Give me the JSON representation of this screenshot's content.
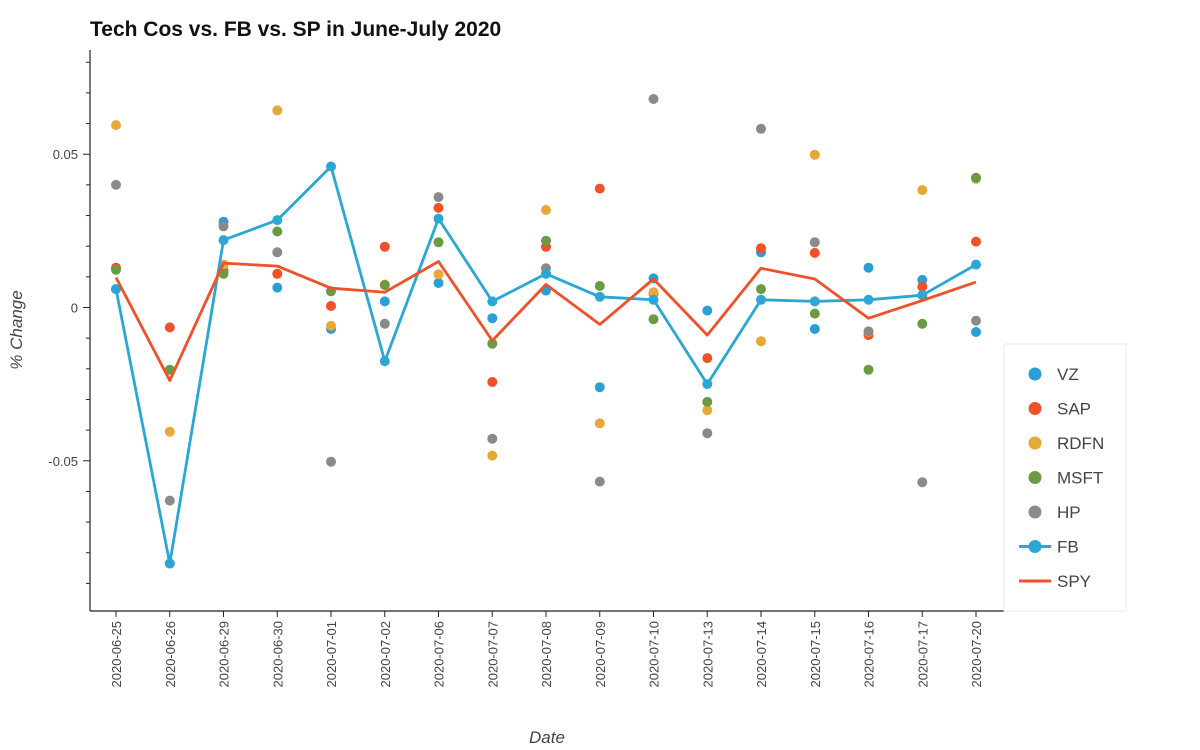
{
  "chart_data": {
    "type": "scatter",
    "title": "Tech Cos vs. FB vs. SP in June-July 2020",
    "xlabel": "Date",
    "ylabel": "% Change",
    "ylim": [
      -0.099,
      0.084
    ],
    "yticks": [
      {
        "value": 0.05,
        "label": "0.05"
      },
      {
        "value": 0,
        "label": "0"
      },
      {
        "value": -0.05,
        "label": "-0.05"
      }
    ],
    "categories": [
      "2020-06-25",
      "2020-06-26",
      "2020-06-29",
      "2020-06-30",
      "2020-07-01",
      "2020-07-02",
      "2020-07-06",
      "2020-07-07",
      "2020-07-08",
      "2020-07-09",
      "2020-07-10",
      "2020-07-13",
      "2020-07-14",
      "2020-07-15",
      "2020-07-16",
      "2020-07-17",
      "2020-07-20"
    ],
    "legend_position": "right",
    "grid": false,
    "series": [
      {
        "name": "VZ",
        "kind": "scatter",
        "color": "#2a9fd6",
        "values": [
          0.006,
          -0.0835,
          0.028,
          0.0065,
          -0.007,
          0.002,
          0.008,
          -0.0035,
          0.0055,
          -0.026,
          0.0095,
          -0.001,
          0.018,
          -0.007,
          0.013,
          0.009,
          -0.008
        ]
      },
      {
        "name": "SAP",
        "kind": "scatter",
        "color": "#f0502a",
        "values": [
          0.013,
          -0.0065,
          0.012,
          0.011,
          0.0005,
          0.0198,
          0.0325,
          -0.0243,
          0.0198,
          0.0388,
          0.0045,
          -0.0165,
          0.0193,
          0.0178,
          -0.009,
          0.0068,
          0.0215
        ]
      },
      {
        "name": "RDFN",
        "kind": "scatter",
        "color": "#e8a835",
        "values": [
          0.0595,
          -0.0405,
          0.014,
          0.0643,
          -0.006,
          0.0075,
          0.0108,
          -0.0483,
          0.0318,
          -0.0378,
          0.005,
          -0.0335,
          -0.011,
          0.0498,
          -0.008,
          0.0383,
          0.042
        ]
      },
      {
        "name": "MSFT",
        "kind": "scatter",
        "color": "#6a9a44",
        "values": [
          0.0123,
          -0.0203,
          0.011,
          0.0248,
          0.0053,
          0.0073,
          0.0213,
          -0.0118,
          0.0218,
          0.007,
          -0.0038,
          -0.0308,
          0.006,
          -0.002,
          -0.0203,
          -0.0053,
          0.0423
        ]
      },
      {
        "name": "HP",
        "kind": "scatter",
        "color": "#8a8a8a",
        "values": [
          0.04,
          -0.063,
          0.0265,
          0.018,
          -0.0503,
          -0.0053,
          0.036,
          -0.0428,
          0.0128,
          -0.0568,
          0.068,
          -0.041,
          0.0583,
          0.0213,
          -0.0078,
          -0.057,
          -0.0043
        ]
      },
      {
        "name": "FB",
        "kind": "line-marker",
        "color": "#2aa7d4",
        "values": [
          0.006,
          -0.0835,
          0.022,
          0.0285,
          0.046,
          -0.0175,
          0.029,
          0.002,
          0.011,
          0.0035,
          0.0025,
          -0.025,
          0.0025,
          0.002,
          0.0025,
          0.004,
          0.014
        ]
      },
      {
        "name": "SPY",
        "kind": "line",
        "color": "#f0502a",
        "values": [
          0.0098,
          -0.0238,
          0.0145,
          0.0135,
          0.0063,
          0.005,
          0.015,
          -0.0108,
          0.0075,
          -0.0055,
          0.0093,
          -0.009,
          0.0128,
          0.0093,
          -0.0035,
          0.0023,
          0.0083
        ]
      }
    ]
  }
}
